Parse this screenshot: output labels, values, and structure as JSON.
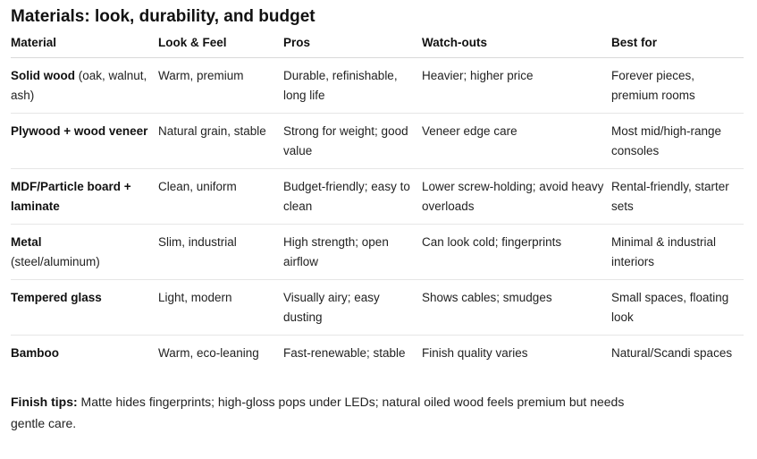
{
  "heading": "Materials: look, durability, and budget",
  "columns": [
    "Material",
    "Look & Feel",
    "Pros",
    "Watch-outs",
    "Best for"
  ],
  "rows": [
    {
      "material_bold": "Solid wood",
      "material_rest": " (oak, walnut, ash)",
      "look": "Warm, premium",
      "pros": "Durable, refinishable, long life",
      "watchouts": "Heavier; higher price",
      "best_for": "Forever pieces, premium rooms"
    },
    {
      "material_bold": "Plywood + wood veneer",
      "material_rest": "",
      "look": "Natural grain, stable",
      "pros": "Strong for weight; good value",
      "watchouts": "Veneer edge care",
      "best_for": "Most mid/high-range consoles"
    },
    {
      "material_bold": "MDF/Particle board + laminate",
      "material_rest": "",
      "look": "Clean, uniform",
      "pros": "Budget-friendly; easy to clean",
      "watchouts": "Lower screw-holding; avoid heavy overloads",
      "best_for": "Rental-friendly, starter sets"
    },
    {
      "material_bold": "Metal",
      "material_rest": " (steel/aluminum)",
      "look": "Slim, industrial",
      "pros": "High strength; open airflow",
      "watchouts": "Can look cold; fingerprints",
      "best_for": "Minimal & industrial interiors"
    },
    {
      "material_bold": "Tempered glass",
      "material_rest": "",
      "look": "Light, modern",
      "pros": "Visually airy; easy dusting",
      "watchouts": "Shows cables; smudges",
      "best_for": "Small spaces, floating look"
    },
    {
      "material_bold": "Bamboo",
      "material_rest": "",
      "look": "Warm, eco-leaning",
      "pros": "Fast-renewable; stable",
      "watchouts": "Finish quality varies",
      "best_for": "Natural/Scandi spaces"
    }
  ],
  "tips": {
    "label": "Finish tips:",
    "text": " Matte hides fingerprints; high-gloss pops under LEDs; natural oiled wood feels premium but needs gentle care."
  }
}
